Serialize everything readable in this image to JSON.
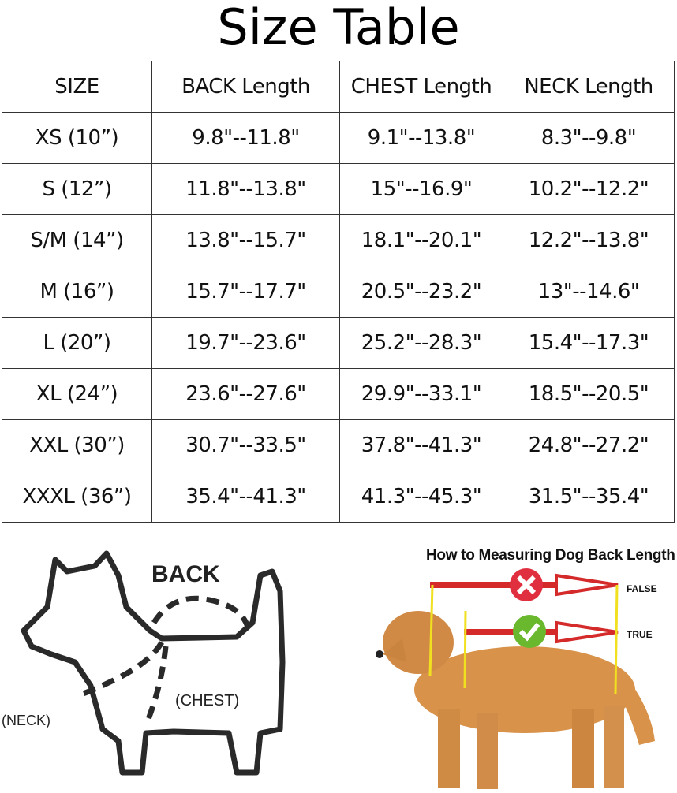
{
  "title": "Size Table",
  "table": {
    "headers": [
      "SIZE",
      "BACK Length",
      "CHEST Length",
      "NECK Length"
    ],
    "rows": [
      [
        "XS (10”)",
        "9.8\"--11.8\"",
        "9.1\"--13.8\"",
        "8.3\"--9.8\""
      ],
      [
        "S (12”)",
        "11.8\"--13.8\"",
        "15\"--16.9\"",
        "10.2\"--12.2\""
      ],
      [
        "S/M (14”)",
        "13.8\"--15.7\"",
        "18.1\"--20.1\"",
        "12.2\"--13.8\""
      ],
      [
        "M (16”)",
        "15.7\"--17.7\"",
        "20.5\"--23.2\"",
        "13\"--14.6\""
      ],
      [
        "L (20”)",
        "19.7\"--23.6\"",
        "25.2\"--28.3\"",
        "15.4\"--17.3\""
      ],
      [
        "XL (24”)",
        "23.6\"--27.6\"",
        "29.9\"--33.1\"",
        "18.5\"--20.5\""
      ],
      [
        "XXL (30”)",
        "30.7\"--33.5\"",
        "37.8\"--41.3\"",
        "24.8\"--27.2\""
      ],
      [
        "XXXL (36”)",
        "35.4\"--41.3\"",
        "41.3\"--45.3\"",
        "31.5\"--35.4\""
      ]
    ]
  },
  "diagram": {
    "back": "BACK",
    "chest": "(CHEST)",
    "neck": "(NECK)"
  },
  "photo": {
    "title": "How to Measuring Dog Back Length",
    "false_label": "FALSE",
    "true_label": "TRUE",
    "colors": {
      "arrow": "#d42a2a",
      "wrong": "#e03040",
      "right": "#6ab82e",
      "guide": "#f0e020"
    }
  }
}
